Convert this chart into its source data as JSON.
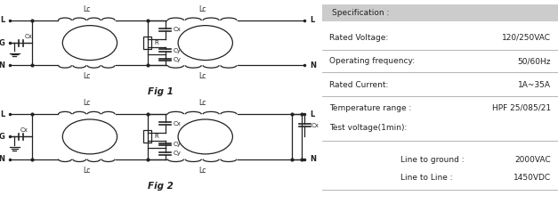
{
  "spec_header": "Specification :",
  "spec_header_bg": "#cccccc",
  "spec_rows": [
    {
      "label": "Rated Voltage:",
      "value": "120/250VAC",
      "separator": true
    },
    {
      "label": "Operating frequency:",
      "value": "50/60Hz",
      "separator": true
    },
    {
      "label": "Rated Current:",
      "value": "1A~35A",
      "separator": true
    },
    {
      "label": "Temperature range :",
      "value": "HPF 25/085/21",
      "separator": false
    },
    {
      "label": "Test voltage(1min):",
      "value": "",
      "separator": true
    }
  ],
  "sub_rows": [
    {
      "label": "Line to ground :",
      "value": "2000VAC"
    },
    {
      "label": "Line to Line :",
      "value": "1450VDC"
    }
  ],
  "fig1_label": "Fig 1",
  "fig2_label": "Fig 2",
  "bg_color": "#ffffff",
  "line_color": "#222222",
  "text_color": "#222222",
  "label_fontsize": 5.5,
  "spec_fontsize": 7.0
}
